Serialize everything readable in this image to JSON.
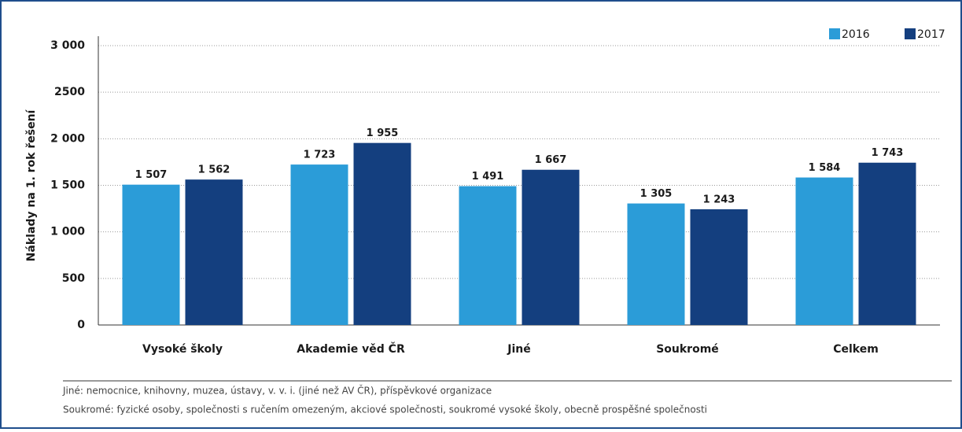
{
  "chart_data": {
    "type": "bar",
    "y_label": "Náklady na  1. rok řešení",
    "categories": [
      "Vysoké školy",
      "Akademie věd ČR",
      "Jiné",
      "Soukromé",
      "Celkem"
    ],
    "series": [
      {
        "name": "2016",
        "color": "#2b9cd8",
        "values": [
          1507,
          1723,
          1491,
          1305,
          1584
        ],
        "value_labels": [
          "1 507",
          "1 723",
          "1 491",
          "1 305",
          "1 584"
        ]
      },
      {
        "name": "2017",
        "color": "#143f7f",
        "values": [
          1562,
          1955,
          1667,
          1243,
          1743
        ],
        "value_labels": [
          "1 562",
          "1 955",
          "1 667",
          "1 243",
          "1 743"
        ]
      }
    ],
    "ylim": [
      0,
      3000
    ],
    "yticks": [
      0,
      500,
      {
        "value": 1000,
        "label": "1 000"
      },
      {
        "value": 1500,
        "label": "1 500"
      },
      {
        "value": 2000,
        "label": "2 000"
      },
      2500,
      {
        "value": 3000,
        "label": "3 000"
      }
    ],
    "grid": true,
    "legend": "top-right",
    "footnotes": [
      "Jiné: nemocnice, knihovny, muzea, ústavy, v. v. i. (jiné než AV ČR), příspěvkové organizace",
      "Soukromé: fyzické osoby, společnosti s ručením  omezeným, akciové společnosti, soukromé vysoké školy, obecně prospěšné společnosti"
    ]
  }
}
